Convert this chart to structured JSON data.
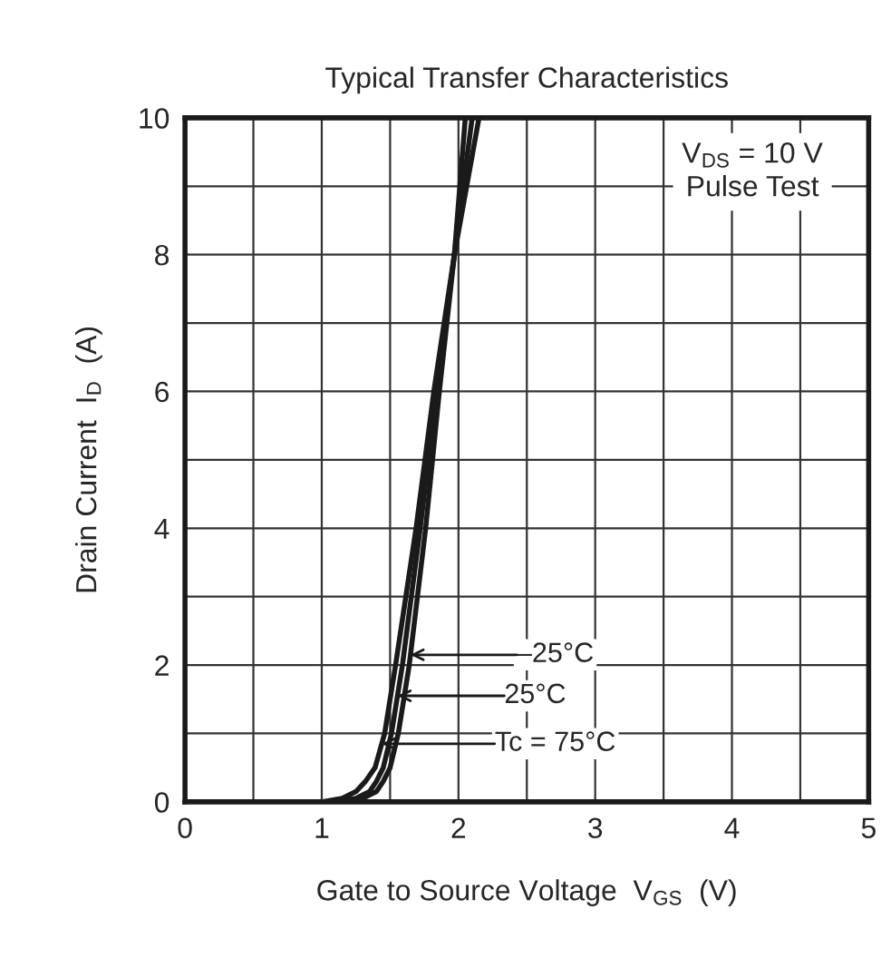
{
  "chart_data": {
    "type": "line",
    "title": "Typical Transfer Characteristics",
    "xlabel": "Gate to Source Voltage  V$_{GS}$  (V)",
    "ylabel": "Drain Current  I$_{D}$  (A)",
    "series": [
      {
        "color": "#1a1a1a",
        "x": [
          0,
          1.15,
          1.3,
          1.4,
          1.45,
          1.5,
          1.56,
          1.64,
          1.76,
          1.86,
          1.97,
          2.05
        ],
        "values": [
          0,
          0,
          0.05,
          0.15,
          0.3,
          0.5,
          1,
          2,
          4,
          6,
          8,
          10
        ]
      },
      {
        "color": "#1a1a1a",
        "x": [
          0,
          1.1,
          1.25,
          1.35,
          1.4,
          1.45,
          1.51,
          1.59,
          1.72,
          1.84,
          1.97,
          2.1
        ],
        "values": [
          0,
          0,
          0.05,
          0.15,
          0.3,
          0.5,
          1,
          2,
          4,
          6,
          8,
          10
        ]
      },
      {
        "color": "#1a1a1a",
        "x": [
          0,
          1.0,
          1.15,
          1.25,
          1.32,
          1.39,
          1.46,
          1.54,
          1.69,
          1.82,
          1.97,
          2.15
        ],
        "values": [
          0,
          0,
          0.05,
          0.15,
          0.3,
          0.5,
          1,
          2,
          4,
          6,
          8,
          10
        ]
      }
    ],
    "xlim": [
      0,
      5
    ],
    "ylim": [
      0,
      10
    ],
    "xticks": [
      0,
      {
        "value": 0.5,
        "label": null
      },
      1,
      {
        "value": 1.5,
        "label": null
      },
      2,
      {
        "value": 2.5,
        "label": null
      },
      3,
      {
        "value": 3.5,
        "label": null
      },
      4,
      {
        "value": 4.5,
        "label": null
      },
      5
    ],
    "yticks": [
      0,
      {
        "value": 1,
        "label": null
      },
      2,
      {
        "value": 3,
        "label": null
      },
      4,
      {
        "value": 5,
        "label": null
      },
      6,
      {
        "value": 7,
        "label": null
      },
      8,
      {
        "value": 9,
        "label": null
      },
      10
    ],
    "grid": true,
    "legend": false,
    "marker": "none",
    "line_style": "solid",
    "annotations": [
      "–25°C",
      "25°C",
      "Tc = 75°C",
      "V$_{DS}$ = 10 V\nPulse Test"
    ]
  }
}
